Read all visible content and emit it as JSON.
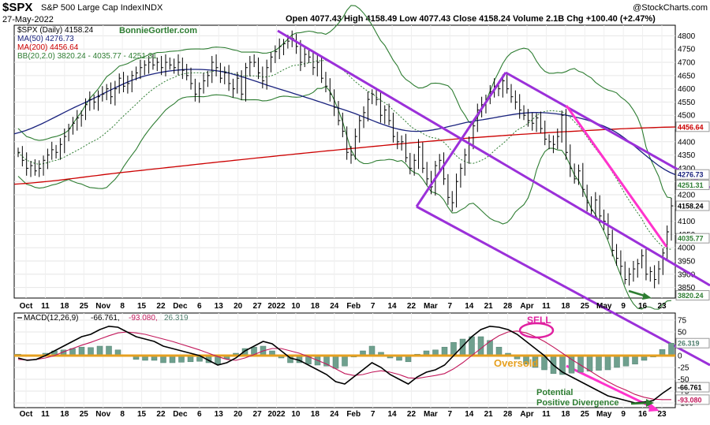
{
  "header": {
    "symbol": "$SPX",
    "name": "S&P 500 Large Cap Index",
    "exchange": "INDX",
    "date": "27-May-2022",
    "ohlc": "Open 4077.43  High 4158.49  Low 4077.43  Close 4158.24  Volume 2.1B  Chg +100.40 (+2.47%)",
    "watermark": "@StockCharts.com"
  },
  "legend": {
    "price": "$SPX (Daily) 4158.24",
    "author": "BonnieGortler.com",
    "ma50": "MA(50) 4276.73",
    "ma200": "MA(200) 4456.64",
    "bb": "BB(20,2.0) 3820.24 - 4035.77 - 4251.31",
    "macd_name": "MACD(12,26,9)",
    "macd_line": "-66.761,",
    "macd_signal": "-93.080,",
    "macd_hist": "26.319"
  },
  "colors": {
    "price": "#000000",
    "ma50": "#1a237e",
    "ma200": "#cc0000",
    "bb": "#2e7d32",
    "bb_mid": "#2e7d32",
    "channel": "#9b30d9",
    "trend": "#ff33cc",
    "macd": "#000000",
    "signal": "#c2185b",
    "hist": "#6fa08e",
    "zero": "#e6a020",
    "arrow": "#2e7d32",
    "sell": "#e020a0"
  },
  "annotations": {
    "sell": "SELL",
    "oversold": "Oversold",
    "divergence_line1": "Potential",
    "divergence_line2": "Positive Divergence"
  },
  "x_labels": [
    "Oct",
    "11",
    "18",
    "25",
    "Nov",
    "8",
    "15",
    "22",
    "Dec",
    "6",
    "13",
    "20",
    "27",
    "2022",
    "10",
    "18",
    "24",
    "Feb",
    "7",
    "14",
    "22",
    "Mar",
    "7",
    "14",
    "21",
    "28",
    "Apr",
    "11",
    "18",
    "25",
    "May",
    "9",
    "16",
    "23"
  ],
  "chart_data": [
    {
      "type": "line",
      "title": "$SPX (Daily)",
      "y_ticks": [
        3850,
        3900,
        3950,
        4000,
        4050,
        4100,
        4150,
        4200,
        4250,
        4300,
        4350,
        4400,
        4450,
        4500,
        4550,
        4600,
        4650,
        4700,
        4750,
        4800
      ],
      "ylim": [
        3810,
        4840
      ],
      "last_values": {
        "close": "4158.24",
        "ma200": "4456.64",
        "ma50": "4276.73",
        "bb_upper": "4251.31",
        "bb_mid": "4035.77",
        "bb_lower": "3820.24"
      },
      "series": [
        {
          "name": "$SPX",
          "values": [
            4360,
            4330,
            4300,
            4310,
            4290,
            4300,
            4330,
            4350,
            4370,
            4360,
            4390,
            4420,
            4450,
            4470,
            4490,
            4500,
            4540,
            4560,
            4550,
            4570,
            4580,
            4600,
            4570,
            4600,
            4640,
            4610,
            4620,
            4650,
            4660,
            4680,
            4690,
            4700,
            4690,
            4700,
            4680,
            4700,
            4690,
            4680,
            4700,
            4670,
            4650,
            4620,
            4580,
            4600,
            4630,
            4650,
            4700,
            4680,
            4640,
            4660,
            4620,
            4600,
            4640,
            4580,
            4680,
            4700,
            4700,
            4660,
            4630,
            4680,
            4720,
            4740,
            4760,
            4770,
            4780,
            4790,
            4760,
            4700,
            4730,
            4720,
            4680,
            4700,
            4640,
            4610,
            4580,
            4530,
            4480,
            4440,
            4360,
            4350,
            4420,
            4480,
            4510,
            4560,
            4580,
            4560,
            4500,
            4520,
            4480,
            4420,
            4400,
            4400,
            4340,
            4300,
            4330,
            4380,
            4300,
            4260,
            4230,
            4310,
            4330,
            4260,
            4190,
            4170,
            4250,
            4300,
            4350,
            4390,
            4460,
            4520,
            4540,
            4560,
            4590,
            4610,
            4600,
            4630,
            4600,
            4570,
            4550,
            4520,
            4500,
            4480,
            4470,
            4490,
            4450,
            4410,
            4400,
            4390,
            4420,
            4500,
            4360,
            4300,
            4260,
            4290,
            4220,
            4170,
            4140,
            4180,
            4120,
            4100,
            4050,
            3990,
            3960,
            3930,
            3880,
            3900,
            3920,
            3940,
            3970,
            3900,
            3910,
            3880,
            3920,
            3980,
            4060,
            4158
          ]
        },
        {
          "name": "MA(200)",
          "values": [
            4240,
            4285,
            4330,
            4372,
            4410,
            4438,
            4456
          ]
        },
        {
          "name": "MA(50)",
          "values": [
            4430,
            4540,
            4650,
            4670,
            4600,
            4520,
            4440,
            4480,
            4510,
            4450,
            4276
          ]
        }
      ]
    },
    {
      "type": "bar",
      "title": "MACD(12,26,9)",
      "y_ticks": [
        -100,
        -75,
        -50,
        -25,
        0,
        25,
        50,
        75
      ],
      "ylim": [
        -110,
        90
      ],
      "series": [
        {
          "name": "MACD",
          "values": [
            -5,
            -10,
            -8,
            0,
            10,
            20,
            30,
            40,
            45,
            55,
            62,
            60,
            50,
            40,
            35,
            30,
            20,
            15,
            10,
            5,
            0,
            -10,
            -20,
            -15,
            -5,
            10,
            20,
            30,
            25,
            10,
            -5,
            -10,
            -20,
            -30,
            -40,
            -55,
            -60,
            -45,
            -30,
            -15,
            -25,
            -40,
            -50,
            -60,
            -45,
            -35,
            -30,
            -20,
            0,
            20,
            40,
            55,
            62,
            60,
            55,
            45,
            30,
            15,
            0,
            -20,
            -35,
            -45,
            -55,
            -65,
            -75,
            -85,
            -90,
            -95,
            -100,
            -98,
            -95,
            -80,
            -66.761
          ]
        },
        {
          "name": "Signal",
          "values": [
            -8,
            -9,
            -8,
            -5,
            0,
            8,
            15,
            22,
            28,
            35,
            42,
            48,
            50,
            48,
            45,
            40,
            35,
            30,
            24,
            18,
            12,
            5,
            -2,
            -8,
            -10,
            -5,
            2,
            10,
            15,
            15,
            10,
            5,
            -2,
            -10,
            -18,
            -28,
            -38,
            -42,
            -40,
            -35,
            -32,
            -35,
            -40,
            -47,
            -48,
            -45,
            -42,
            -38,
            -28,
            -15,
            0,
            15,
            30,
            42,
            50,
            52,
            48,
            40,
            30,
            18,
            5,
            -8,
            -20,
            -32,
            -44,
            -55,
            -65,
            -73,
            -82,
            -88,
            -92,
            -93,
            -93.08
          ]
        }
      ]
    }
  ]
}
